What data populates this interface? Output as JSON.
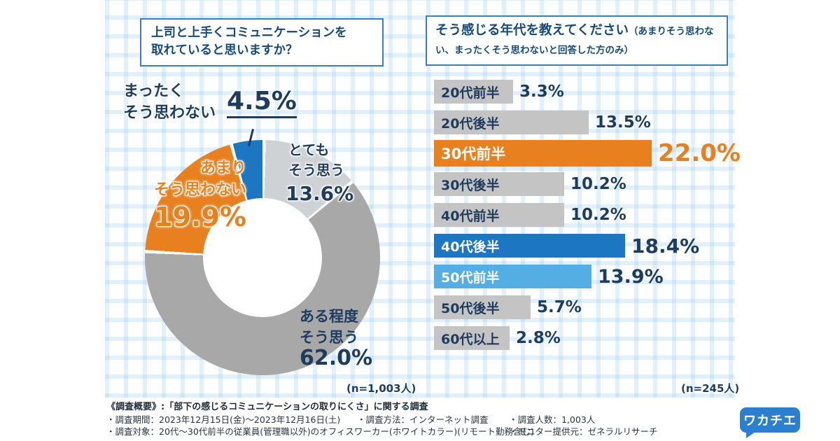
{
  "colors": {
    "navy_text": "#1d3c5e",
    "title_blue": "#174a7c",
    "title_border_blue": "#3c7dbd",
    "orange": "#e8801f",
    "dark_blue": "#1d76c2",
    "light_blue": "#54aee3",
    "gray_bar": "#c4c4c4",
    "donut_light_gray": "#ced2d5",
    "donut_gray": "#a8a8a8",
    "logo_blue": "#2b7fd0"
  },
  "titles": {
    "left": "上司と上手くコミュニケーションを\n取れていると思いますか？",
    "right_main": "そう感じる年代を教えてください",
    "right_note": "（あまりそう思わない、まったくそう思わないと回答した方のみ）"
  },
  "chart_data": [
    {
      "type": "pie",
      "subtype": "donut",
      "title": "上司と上手くコミュニケーションを取れていると思いますか？",
      "n_label": "(n=1,003人)",
      "segments": [
        {
          "label": "とてもそう思う",
          "lines": "とても\nそう思う",
          "value": 13.6,
          "pct": "13.6%",
          "color": "#ced2d5"
        },
        {
          "label": "ある程度そう思う",
          "lines": "ある程度\nそう思う",
          "value": 62.0,
          "pct": "62.0%",
          "color": "#a8a8a8"
        },
        {
          "label": "あまりそう思わない",
          "lines": "あまり\nそう思わない",
          "value": 19.9,
          "pct": "19.9%",
          "color": "#e8801f"
        },
        {
          "label": "まったくそう思わない",
          "lines": "まったく\nそう思わない",
          "value": 4.5,
          "pct": "4.5%",
          "color": "#1d76c2"
        }
      ]
    },
    {
      "type": "bar",
      "orientation": "horizontal",
      "title": "そう感じる年代を教えてください（あまりそう思わない、まったくそう思わないと回答した方のみ）",
      "unit": "%",
      "xlim": [
        0,
        25
      ],
      "n_label": "(n=245人)",
      "rows": [
        {
          "label": "20代前半",
          "value": 3.3,
          "pct": "3.3%",
          "style": "gray"
        },
        {
          "label": "20代後半",
          "value": 13.5,
          "pct": "13.5%",
          "style": "gray"
        },
        {
          "label": "30代前半",
          "value": 22.0,
          "pct": "22.0%",
          "style": "orange"
        },
        {
          "label": "30代後半",
          "value": 10.2,
          "pct": "10.2%",
          "style": "gray"
        },
        {
          "label": "40代前半",
          "value": 10.2,
          "pct": "10.2%",
          "style": "gray"
        },
        {
          "label": "40代後半",
          "value": 18.4,
          "pct": "18.4%",
          "style": "blue"
        },
        {
          "label": "50代前半",
          "value": 13.9,
          "pct": "13.9%",
          "style": "lightblue"
        },
        {
          "label": "50代後半",
          "value": 5.7,
          "pct": "5.7%",
          "style": "gray"
        },
        {
          "label": "60代以上",
          "value": 2.8,
          "pct": "2.8%",
          "style": "gray"
        }
      ]
    }
  ],
  "footer": {
    "heading": "《調査概要》:「部下の感じるコミュニケーションの取りにくさ」に関する調査",
    "period": "・調査期間：2023年12月15日(金)～2023年12月16日(土)",
    "method": "・調査方法：インターネット調査",
    "people": "・調査人数：1,003人",
    "target": "・調査対象：20代～30代前半の従業員(管理職以外)のオフィスワーカー(ホワイトカラー)(リモート勤務含む)",
    "monitor": "・モニター提供元：ゼネラルリサーチ",
    "logo": "ワカチエ"
  }
}
